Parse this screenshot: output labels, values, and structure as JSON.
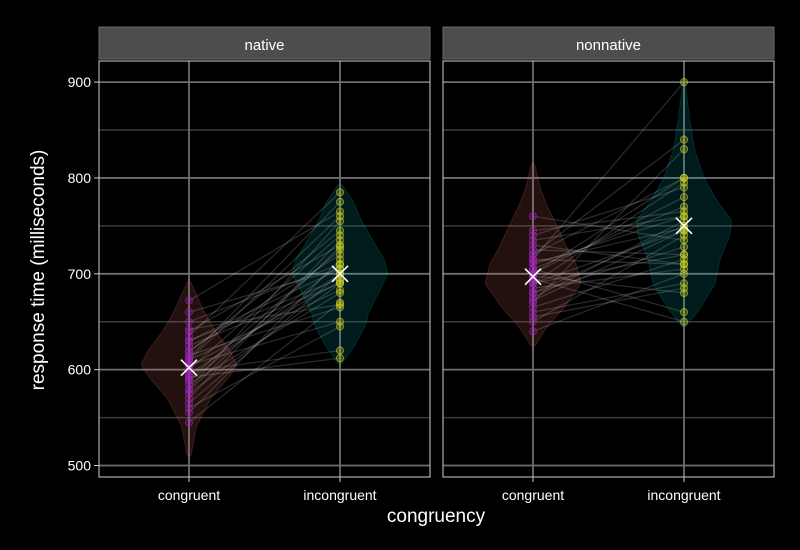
{
  "chart_data": {
    "type": "violin",
    "xlabel": "congruency",
    "ylabel": "response time (milliseconds)",
    "ylim": [
      488,
      922
    ],
    "y_ticks": [
      500,
      600,
      700,
      800,
      900
    ],
    "categories": [
      "congruent",
      "incongruent"
    ],
    "grid": true,
    "colors": {
      "background": "#000000",
      "strip": "#4d4d4d",
      "grid_major": "#6e6e6e",
      "grid_minor": "#3a3a3a",
      "violin_congruent": "#f8766d",
      "violin_incongruent": "#00bfc4",
      "points_congruent": "#a020c0",
      "points_incongruent": "#d7d71a",
      "mean_marker": "#ffffff"
    },
    "panels": [
      {
        "label": "native",
        "means": [
          602,
          700
        ],
        "violins": [
          {
            "range": [
              510,
              692
            ],
            "density": [
              [
                510,
                0.04
              ],
              [
                540,
                0.15
              ],
              [
                570,
                0.45
              ],
              [
                590,
                0.8
              ],
              [
                605,
                1.0
              ],
              [
                620,
                0.85
              ],
              [
                640,
                0.55
              ],
              [
                660,
                0.32
              ],
              [
                680,
                0.14
              ],
              [
                692,
                0.03
              ]
            ]
          },
          {
            "range": [
              606,
              793
            ],
            "density": [
              [
                606,
                0.04
              ],
              [
                625,
                0.3
              ],
              [
                645,
                0.52
              ],
              [
                660,
                0.6
              ],
              [
                680,
                0.8
              ],
              [
                700,
                1.0
              ],
              [
                715,
                0.92
              ],
              [
                735,
                0.68
              ],
              [
                755,
                0.45
              ],
              [
                775,
                0.28
              ],
              [
                793,
                0.04
              ]
            ]
          }
        ],
        "pairs": [
          [
            595,
            700
          ],
          [
            620,
            720
          ],
          [
            575,
            690
          ],
          [
            560,
            645
          ],
          [
            610,
            760
          ],
          [
            640,
            730
          ],
          [
            585,
            680
          ],
          [
            630,
            695
          ],
          [
            600,
            740
          ],
          [
            545,
            670
          ],
          [
            650,
            710
          ],
          [
            615,
            665
          ],
          [
            590,
            725
          ],
          [
            565,
            700
          ],
          [
            635,
            785
          ],
          [
            605,
            650
          ],
          [
            580,
            755
          ],
          [
            660,
            705
          ],
          [
            625,
            690
          ],
          [
            570,
            735
          ],
          [
            598,
            620
          ],
          [
            612,
            775
          ],
          [
            588,
            710
          ],
          [
            642,
            668
          ],
          [
            555,
            715
          ],
          [
            618,
            745
          ],
          [
            603,
            692
          ],
          [
            672,
            765
          ],
          [
            578,
            728
          ],
          [
            630,
            705
          ],
          [
            592,
            612
          ],
          [
            610,
            683
          ]
        ]
      },
      {
        "label": "nonnative",
        "means": [
          697,
          750
        ],
        "violins": [
          {
            "range": [
              625,
              815
            ],
            "density": [
              [
                625,
                0.04
              ],
              [
                645,
                0.3
              ],
              [
                665,
                0.65
              ],
              [
                690,
                1.0
              ],
              [
                710,
                0.9
              ],
              [
                730,
                0.68
              ],
              [
                750,
                0.5
              ],
              [
                770,
                0.3
              ],
              [
                790,
                0.15
              ],
              [
                815,
                0.03
              ]
            ]
          },
          {
            "range": [
              645,
              902
            ],
            "density": [
              [
                645,
                0.04
              ],
              [
                665,
                0.35
              ],
              [
                690,
                0.65
              ],
              [
                715,
                0.75
              ],
              [
                740,
                0.95
              ],
              [
                755,
                1.0
              ],
              [
                775,
                0.7
              ],
              [
                800,
                0.42
              ],
              [
                830,
                0.22
              ],
              [
                860,
                0.12
              ],
              [
                902,
                0.02
              ]
            ]
          }
        ],
        "pairs": [
          [
            680,
            750
          ],
          [
            700,
            780
          ],
          [
            660,
            690
          ],
          [
            720,
            800
          ],
          [
            690,
            720
          ],
          [
            710,
            760
          ],
          [
            650,
            740
          ],
          [
            730,
            710
          ],
          [
            670,
            830
          ],
          [
            695,
            650
          ],
          [
            740,
            790
          ],
          [
            685,
            705
          ],
          [
            705,
            770
          ],
          [
            760,
            735
          ],
          [
            655,
            685
          ],
          [
            715,
            900
          ],
          [
            675,
            755
          ],
          [
            725,
            720
          ],
          [
            690,
            745
          ],
          [
            700,
            800
          ],
          [
            640,
            700
          ],
          [
            745,
            765
          ],
          [
            665,
            715
          ],
          [
            720,
            840
          ],
          [
            698,
            680
          ],
          [
            712,
            748
          ],
          [
            680,
            728
          ],
          [
            735,
            760
          ],
          [
            690,
            795
          ],
          [
            705,
            660
          ],
          [
            672,
            745
          ],
          [
            715,
            710
          ]
        ]
      }
    ]
  }
}
